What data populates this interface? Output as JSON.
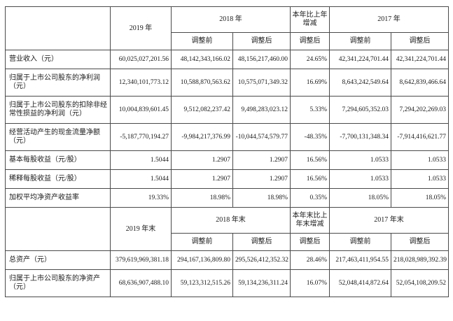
{
  "table": {
    "sub_headers": {
      "before": "调整前",
      "after": "调整后"
    },
    "section1": {
      "header": {
        "col_2019": "2019 年",
        "col_2018": "2018 年",
        "col_change": "本年比上年增减",
        "col_2017": "2017 年"
      },
      "rows": [
        {
          "label": "营业收入（元）",
          "values": [
            "60,025,027,201.56",
            "48,142,343,166.02",
            "48,156,217,460.00",
            "24.65%",
            "42,341,224,701.44",
            "42,341,224,701.44"
          ]
        },
        {
          "label": "归属于上市公司股东的净利润（元）",
          "values": [
            "12,340,101,773.12",
            "10,588,870,563.62",
            "10,575,071,349.32",
            "16.69%",
            "8,643,242,549.64",
            "8,642,839,466.64"
          ]
        },
        {
          "label": "归属于上市公司股东的扣除非经常性损益的净利润（元）",
          "values": [
            "10,004,839,601.45",
            "9,512,082,237.42",
            "9,498,283,023.12",
            "5.33%",
            "7,294,605,352.03",
            "7,294,202,269.03"
          ]
        },
        {
          "label": "经营活动产生的现金流量净额（元）",
          "values": [
            "-5,187,770,194.27",
            "-9,984,217,376.99",
            "-10,044,574,579.77",
            "-48.35%",
            "-7,700,131,348.34",
            "-7,914,416,621.77"
          ]
        },
        {
          "label": "基本每股收益（元/股）",
          "values": [
            "1.5044",
            "1.2907",
            "1.2907",
            "16.56%",
            "1.0533",
            "1.0533"
          ]
        },
        {
          "label": "稀释每股收益（元/股）",
          "values": [
            "1.5044",
            "1.2907",
            "1.2907",
            "16.56%",
            "1.0533",
            "1.0533"
          ]
        },
        {
          "label": "加权平均净资产收益率",
          "values": [
            "19.33%",
            "18.98%",
            "18.98%",
            "0.35%",
            "18.05%",
            "18.05%"
          ]
        }
      ]
    },
    "section2": {
      "header": {
        "col_2019": "2019 年末",
        "col_2018": "2018 年末",
        "col_change": "本年末比上年末增减",
        "col_2017": "2017 年末"
      },
      "rows": [
        {
          "label": "总资产（元）",
          "values": [
            "379,619,969,381.18",
            "294,167,136,809.80",
            "295,526,412,352.32",
            "28.46%",
            "217,463,411,954.55",
            "218,028,989,392.39"
          ]
        },
        {
          "label": "归属于上市公司股东的净资产（元）",
          "values": [
            "68,636,907,488.10",
            "59,123,312,515.26",
            "59,134,236,311.24",
            "16.07%",
            "52,048,414,872.64",
            "52,054,108,209.52"
          ]
        }
      ]
    }
  }
}
